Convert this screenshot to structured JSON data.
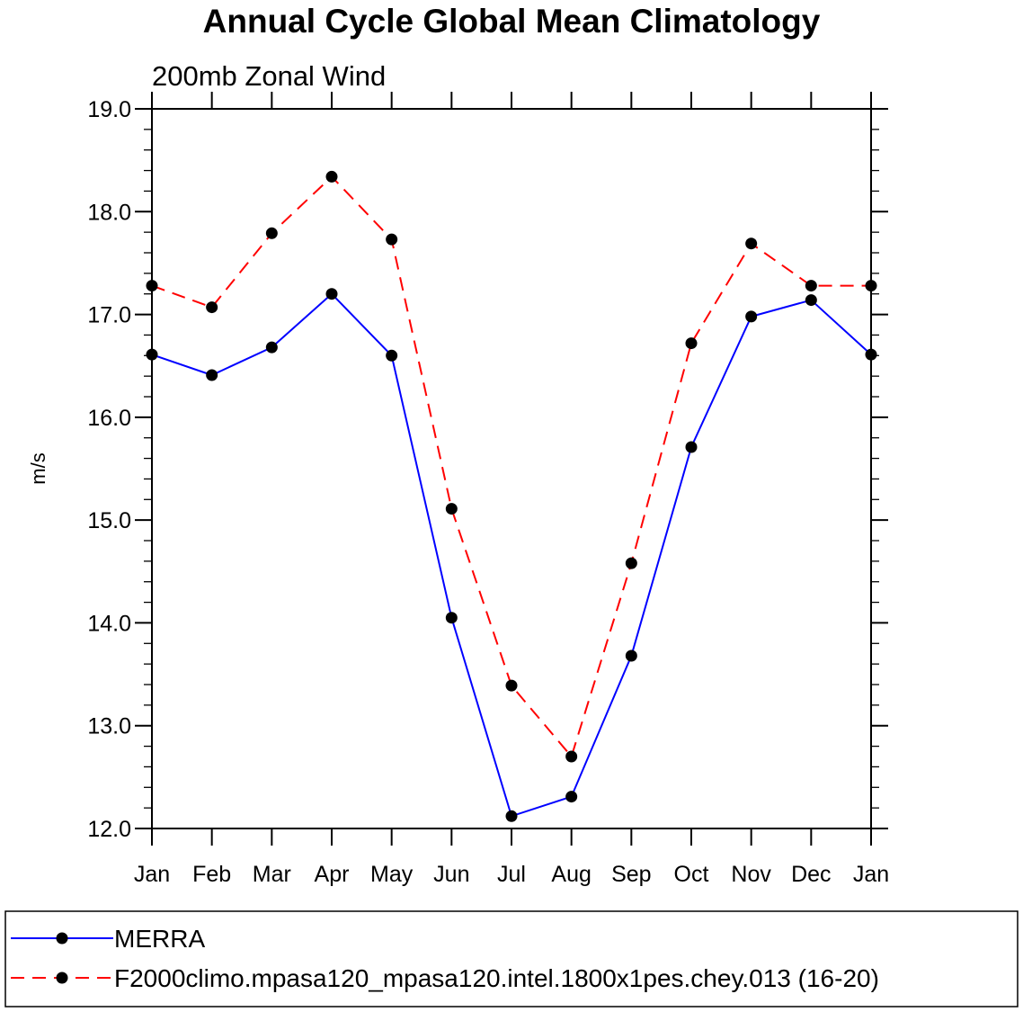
{
  "chart_data": {
    "type": "line",
    "title": "Annual Cycle Global Mean Climatology",
    "subtitle": "200mb Zonal Wind",
    "xlabel": "",
    "ylabel": "m/s",
    "ylim": [
      12.0,
      19.0
    ],
    "yticks": [
      "12.0",
      "13.0",
      "14.0",
      "15.0",
      "16.0",
      "17.0",
      "18.0",
      "19.0"
    ],
    "categories": [
      "Jan",
      "Feb",
      "Mar",
      "Apr",
      "May",
      "Jun",
      "Jul",
      "Aug",
      "Sep",
      "Oct",
      "Nov",
      "Dec",
      "Jan"
    ],
    "grid": false,
    "legend_position": "bottom",
    "series": [
      {
        "name": "MERRA",
        "color": "#0000ff",
        "style": "solid",
        "marker": "circle",
        "values": [
          16.61,
          16.41,
          16.68,
          17.2,
          16.6,
          14.05,
          12.12,
          12.31,
          13.68,
          15.71,
          16.98,
          17.14,
          16.61
        ]
      },
      {
        "name": "F2000climo.mpasa120_mpasa120.intel.1800x1pes.chey.013 (16-20)",
        "color": "#ff0000",
        "style": "dashed",
        "marker": "circle",
        "values": [
          17.28,
          17.07,
          17.79,
          18.34,
          17.73,
          15.11,
          13.39,
          12.7,
          14.58,
          16.72,
          17.69,
          17.28,
          17.28
        ]
      }
    ]
  }
}
